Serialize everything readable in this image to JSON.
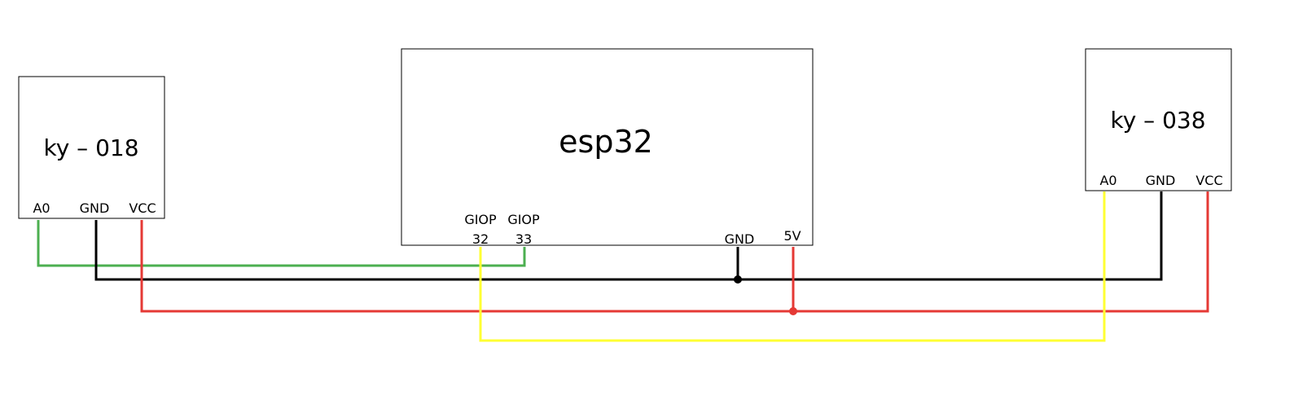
{
  "colors": {
    "background": "#ffffff",
    "outline": "#000000",
    "wire_signal_ky018": "#4caf50",
    "wire_gnd": "#000000",
    "wire_vcc": "#e53935",
    "wire_signal_ky038": "#ffff33"
  },
  "modules": {
    "ky018": {
      "title": "ky – 018",
      "pins": {
        "a0": "A0",
        "gnd": "GND",
        "vcc": "VCC"
      }
    },
    "esp32": {
      "title": "esp32",
      "pins": {
        "giop32_line1": "GIOP",
        "giop32_line2": "32",
        "giop33_line1": "GIOP",
        "giop33_line2": "33",
        "gnd": "GND",
        "v5": "5V"
      }
    },
    "ky038": {
      "title": "ky – 038",
      "pins": {
        "a0": "A0",
        "gnd": "GND",
        "vcc": "VCC"
      }
    }
  },
  "connections": [
    {
      "from": "ky – 018 A0",
      "to": "esp32 GIOP 33",
      "color": "#4caf50"
    },
    {
      "from": "ky – 018 GND",
      "to": "ky – 038 GND",
      "color": "#000000"
    },
    {
      "from": "esp32 GND",
      "to": "GND net",
      "color": "#000000"
    },
    {
      "from": "ky – 018 VCC",
      "to": "ky – 038 VCC",
      "color": "#e53935"
    },
    {
      "from": "esp32 5V",
      "to": "VCC net",
      "color": "#e53935"
    },
    {
      "from": "esp32 GIOP 32",
      "to": "ky – 038 A0",
      "color": "#ffff33"
    }
  ]
}
